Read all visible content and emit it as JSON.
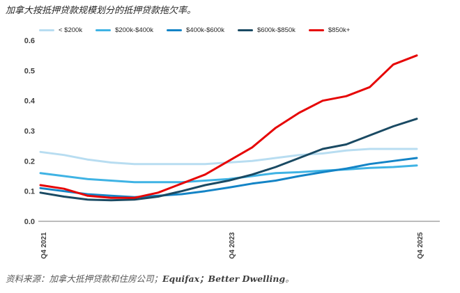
{
  "footer": {
    "prefix": "资料来源：加拿大抵押贷款和住房公司；",
    "bold": "Equifax；Better Dwelling",
    "suffix": "。"
  },
  "chart_data": {
    "type": "line",
    "title": "加拿大按抵押贷款规模划分的抵押贷款拖欠率。",
    "xlabel": "",
    "ylabel": "",
    "ylim": [
      0,
      0.6
    ],
    "yticks": [
      0,
      0.1,
      0.2,
      0.3,
      0.4,
      0.5,
      0.6
    ],
    "grid": "off",
    "legend_position": "top",
    "axis_color": "#a6a6a6",
    "x_count": 17,
    "x_unit": "quarterly from Q4 2021 to Q4 2025",
    "x_ticks": [
      {
        "label": "Q4 2021",
        "index": 0
      },
      {
        "label": "Q4 2023",
        "index": 8
      },
      {
        "label": "Q4 2025",
        "index": 16
      }
    ],
    "series": [
      {
        "name": "< $200k",
        "color": "#B8DDF1",
        "values": [
          0.23,
          0.22,
          0.205,
          0.195,
          0.19,
          0.19,
          0.19,
          0.19,
          0.195,
          0.2,
          0.21,
          0.22,
          0.225,
          0.235,
          0.24,
          0.24,
          0.24
        ]
      },
      {
        "name": "$200k-$400k",
        "color": "#3FB3E4",
        "values": [
          0.16,
          0.15,
          0.14,
          0.135,
          0.13,
          0.13,
          0.13,
          0.135,
          0.14,
          0.15,
          0.16,
          0.163,
          0.168,
          0.172,
          0.177,
          0.18,
          0.185
        ]
      },
      {
        "name": "$400k-$600k",
        "color": "#1484C6",
        "values": [
          0.11,
          0.1,
          0.09,
          0.085,
          0.08,
          0.085,
          0.09,
          0.1,
          0.112,
          0.125,
          0.135,
          0.15,
          0.163,
          0.175,
          0.19,
          0.2,
          0.21
        ]
      },
      {
        "name": "$600k-$850k",
        "color": "#1A4A63",
        "values": [
          0.095,
          0.082,
          0.072,
          0.07,
          0.072,
          0.082,
          0.1,
          0.12,
          0.135,
          0.155,
          0.18,
          0.21,
          0.24,
          0.255,
          0.285,
          0.315,
          0.34
        ]
      },
      {
        "name": "$850k+",
        "color": "#E60505",
        "values": [
          0.12,
          0.108,
          0.085,
          0.078,
          0.078,
          0.095,
          0.125,
          0.155,
          0.2,
          0.245,
          0.31,
          0.36,
          0.4,
          0.415,
          0.445,
          0.52,
          0.55
        ]
      }
    ]
  }
}
